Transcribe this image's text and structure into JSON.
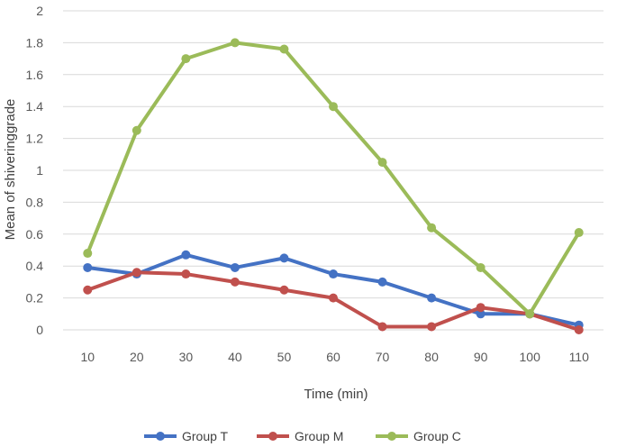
{
  "chart_data": {
    "type": "line",
    "title": "",
    "xlabel": "Time (min)",
    "ylabel": "Mean of shiveringgrade",
    "categories": [
      "10",
      "20",
      "30",
      "40",
      "50",
      "60",
      "70",
      "80",
      "90",
      "100",
      "110"
    ],
    "ylim": [
      0,
      2
    ],
    "yticks": [
      "0",
      "0.2",
      "0.4",
      "0.6",
      "0.8",
      "1",
      "1.2",
      "1.4",
      "1.6",
      "1.8",
      "2"
    ],
    "grid": true,
    "legend_position": "bottom",
    "series": [
      {
        "name": "Group T",
        "color": "#4472C4",
        "values": [
          0.39,
          0.35,
          0.47,
          0.39,
          0.45,
          0.35,
          0.3,
          0.2,
          0.1,
          0.1,
          0.03
        ]
      },
      {
        "name": "Group M",
        "color": "#C0504D",
        "values": [
          0.25,
          0.36,
          0.35,
          0.3,
          0.25,
          0.2,
          0.02,
          0.02,
          0.14,
          0.1,
          0.0
        ]
      },
      {
        "name": "Group C",
        "color": "#9BBB59",
        "values": [
          0.48,
          1.25,
          1.7,
          1.8,
          1.76,
          1.4,
          1.05,
          0.64,
          0.39,
          0.1,
          0.61
        ]
      }
    ]
  }
}
